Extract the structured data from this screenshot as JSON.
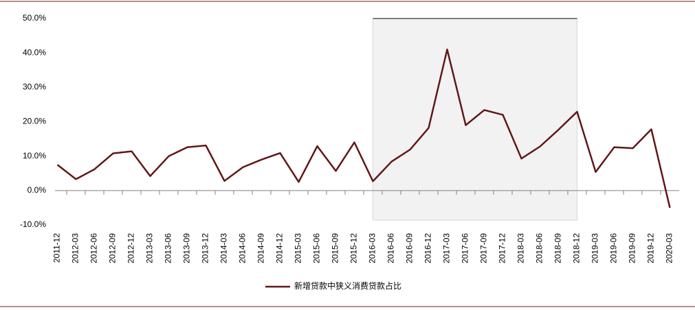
{
  "chart_data": {
    "type": "line",
    "categories": [
      "2011-12",
      "2012-03",
      "2012-06",
      "2012-09",
      "2012-12",
      "2013-03",
      "2013-06",
      "2013-09",
      "2013-12",
      "2014-03",
      "2014-06",
      "2014-09",
      "2014-12",
      "2015-03",
      "2015-06",
      "2015-09",
      "2015-12",
      "2016-03",
      "2016-06",
      "2016-09",
      "2016-12",
      "2017-03",
      "2017-06",
      "2017-09",
      "2017-12",
      "2018-03",
      "2018-06",
      "2018-09",
      "2018-12",
      "2019-03",
      "2019-06",
      "2019-09",
      "2019-12",
      "2020-03"
    ],
    "series": [
      {
        "name": "新增贷款中狭义消费贷款占比",
        "color": "#621616",
        "values": [
          7.5,
          3.3,
          6.2,
          10.8,
          11.4,
          4.2,
          10.0,
          12.6,
          13.1,
          2.8,
          6.8,
          9.0,
          10.9,
          2.5,
          12.9,
          5.7,
          14.0,
          2.7,
          8.4,
          11.9,
          18.2,
          41.0,
          19.0,
          23.4,
          22.0,
          9.3,
          12.8,
          17.7,
          22.9,
          5.4,
          12.6,
          12.3,
          17.8,
          -5.0
        ]
      }
    ],
    "ylim": [
      -10,
      50
    ],
    "yticks": [
      {
        "value": -10,
        "label": "-10.0%"
      },
      {
        "value": 0,
        "label": "0.0%"
      },
      {
        "value": 10,
        "label": "10.0%"
      },
      {
        "value": 20,
        "label": "20.0%"
      },
      {
        "value": 30,
        "label": "30.0%"
      },
      {
        "value": 40,
        "label": "40.0%"
      },
      {
        "value": 50,
        "label": "50.0%"
      }
    ],
    "highlight": [
      "2016-03",
      "2018-12"
    ],
    "legend": "bottom"
  }
}
